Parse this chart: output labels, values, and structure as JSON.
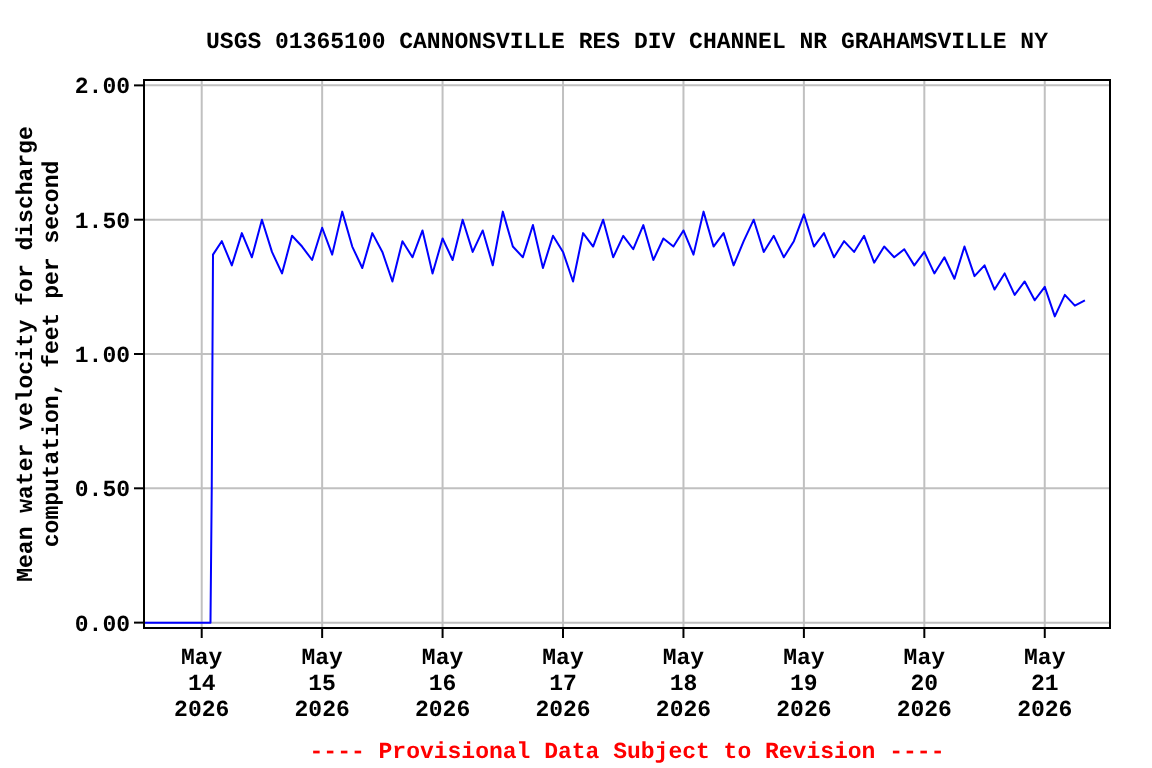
{
  "chart_data": {
    "type": "line",
    "title": "USGS 01365100 CANNONSVILLE RES DIV CHANNEL NR GRAHAMSVILLE NY",
    "ylabel": "Mean water velocity for discharge\ncomputation, feet per second",
    "annotations": [
      "---- Provisional Data Subject to Revision ----"
    ],
    "grid": true,
    "marker": "none",
    "line_style": "solid",
    "xlim": [
      "2026-05-13T12:30",
      "2026-05-21T13:00"
    ],
    "xticks": [
      {
        "value": "2026-05-14",
        "label": "May\n14\n2026"
      },
      {
        "value": "2026-05-15",
        "label": "May\n15\n2026"
      },
      {
        "value": "2026-05-16",
        "label": "May\n16\n2026"
      },
      {
        "value": "2026-05-17",
        "label": "May\n17\n2026"
      },
      {
        "value": "2026-05-18",
        "label": "May\n18\n2026"
      },
      {
        "value": "2026-05-19",
        "label": "May\n19\n2026"
      },
      {
        "value": "2026-05-20",
        "label": "May\n20\n2026"
      },
      {
        "value": "2026-05-21",
        "label": "May\n21\n2026"
      }
    ],
    "ylim": [
      -0.02,
      2.02
    ],
    "yticks": [
      {
        "value": 0,
        "label": "0.00"
      },
      {
        "value": 0.5,
        "label": "0.50"
      },
      {
        "value": 1,
        "label": "1.00"
      },
      {
        "value": 1.5,
        "label": "1.50"
      },
      {
        "value": 2,
        "label": "2.00"
      }
    ],
    "series": [
      {
        "color": "#0000ff",
        "x": [
          "2026-05-13T12:30",
          "2026-05-14T01:45",
          "2026-05-14T02:00",
          "2026-05-14T02:15",
          "2026-05-14T04:00",
          "2026-05-14T06:00",
          "2026-05-14T08:00",
          "2026-05-14T10:00",
          "2026-05-14T12:00",
          "2026-05-14T14:00",
          "2026-05-14T16:00",
          "2026-05-14T18:00",
          "2026-05-14T20:00",
          "2026-05-14T22:00",
          "2026-05-15T00:00",
          "2026-05-15T02:00",
          "2026-05-15T04:00",
          "2026-05-15T06:00",
          "2026-05-15T08:00",
          "2026-05-15T10:00",
          "2026-05-15T12:00",
          "2026-05-15T14:00",
          "2026-05-15T16:00",
          "2026-05-15T18:00",
          "2026-05-15T20:00",
          "2026-05-15T22:00",
          "2026-05-16T00:00",
          "2026-05-16T02:00",
          "2026-05-16T04:00",
          "2026-05-16T06:00",
          "2026-05-16T08:00",
          "2026-05-16T10:00",
          "2026-05-16T12:00",
          "2026-05-16T14:00",
          "2026-05-16T16:00",
          "2026-05-16T18:00",
          "2026-05-16T20:00",
          "2026-05-16T22:00",
          "2026-05-17T00:00",
          "2026-05-17T02:00",
          "2026-05-17T04:00",
          "2026-05-17T06:00",
          "2026-05-17T08:00",
          "2026-05-17T10:00",
          "2026-05-17T12:00",
          "2026-05-17T14:00",
          "2026-05-17T16:00",
          "2026-05-17T18:00",
          "2026-05-17T20:00",
          "2026-05-17T22:00",
          "2026-05-18T00:00",
          "2026-05-18T02:00",
          "2026-05-18T04:00",
          "2026-05-18T06:00",
          "2026-05-18T08:00",
          "2026-05-18T10:00",
          "2026-05-18T12:00",
          "2026-05-18T14:00",
          "2026-05-18T16:00",
          "2026-05-18T18:00",
          "2026-05-18T20:00",
          "2026-05-18T22:00",
          "2026-05-19T00:00",
          "2026-05-19T02:00",
          "2026-05-19T04:00",
          "2026-05-19T06:00",
          "2026-05-19T08:00",
          "2026-05-19T10:00",
          "2026-05-19T12:00",
          "2026-05-19T14:00",
          "2026-05-19T16:00",
          "2026-05-19T18:00",
          "2026-05-19T20:00",
          "2026-05-19T22:00",
          "2026-05-20T00:00",
          "2026-05-20T02:00",
          "2026-05-20T04:00",
          "2026-05-20T06:00",
          "2026-05-20T08:00",
          "2026-05-20T10:00",
          "2026-05-20T12:00",
          "2026-05-20T14:00",
          "2026-05-20T16:00",
          "2026-05-20T18:00",
          "2026-05-20T20:00",
          "2026-05-20T22:00",
          "2026-05-21T00:00",
          "2026-05-21T02:00",
          "2026-05-21T04:00",
          "2026-05-21T06:00",
          "2026-05-21T08:00"
        ],
        "values": [
          0,
          0,
          0.5,
          1.37,
          1.42,
          1.33,
          1.45,
          1.36,
          1.5,
          1.38,
          1.3,
          1.44,
          1.4,
          1.35,
          1.47,
          1.37,
          1.53,
          1.4,
          1.32,
          1.45,
          1.38,
          1.27,
          1.42,
          1.36,
          1.46,
          1.3,
          1.43,
          1.35,
          1.5,
          1.38,
          1.46,
          1.33,
          1.53,
          1.4,
          1.36,
          1.48,
          1.32,
          1.44,
          1.38,
          1.27,
          1.45,
          1.4,
          1.5,
          1.36,
          1.44,
          1.39,
          1.48,
          1.35,
          1.43,
          1.4,
          1.46,
          1.37,
          1.53,
          1.4,
          1.45,
          1.33,
          1.42,
          1.5,
          1.38,
          1.44,
          1.36,
          1.42,
          1.52,
          1.4,
          1.45,
          1.36,
          1.42,
          1.38,
          1.44,
          1.34,
          1.4,
          1.36,
          1.39,
          1.33,
          1.38,
          1.3,
          1.36,
          1.28,
          1.4,
          1.29,
          1.33,
          1.24,
          1.3,
          1.22,
          1.27,
          1.2,
          1.25,
          1.14,
          1.22,
          1.18,
          1.2
        ]
      }
    ]
  }
}
